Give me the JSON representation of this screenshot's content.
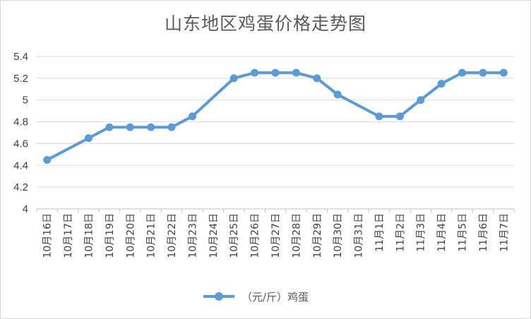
{
  "chart_data": {
    "type": "line",
    "title": "山东地区鸡蛋价格走势图",
    "categories": [
      "10月16日",
      "10月17日",
      "10月18日",
      "10月19日",
      "10月20日",
      "10月21日",
      "10月22日",
      "10月23日",
      "10月24日",
      "10月25日",
      "10月26日",
      "10月27日",
      "10月28日",
      "10月29日",
      "10月30日",
      "10月31日",
      "11月1日",
      "11月2日",
      "11月3日",
      "11月4日",
      "11月5日",
      "11月6日",
      "11月7日"
    ],
    "series": [
      {
        "name": "（元/斤）鸡蛋",
        "color": "#5B9BD5",
        "values": [
          4.45,
          null,
          4.65,
          4.75,
          4.75,
          4.75,
          4.75,
          4.85,
          null,
          5.2,
          5.25,
          5.25,
          5.25,
          5.2,
          5.05,
          null,
          4.85,
          4.85,
          5.0,
          5.15,
          5.25,
          5.25,
          5.25
        ]
      }
    ],
    "y_ticks": [
      "4",
      "4.2",
      "4.4",
      "4.6",
      "4.8",
      "5",
      "5.2",
      "5.4"
    ],
    "ylim": [
      4,
      5.4
    ],
    "grid": "horizontal",
    "legend_position": "bottom",
    "gaps": "span"
  }
}
